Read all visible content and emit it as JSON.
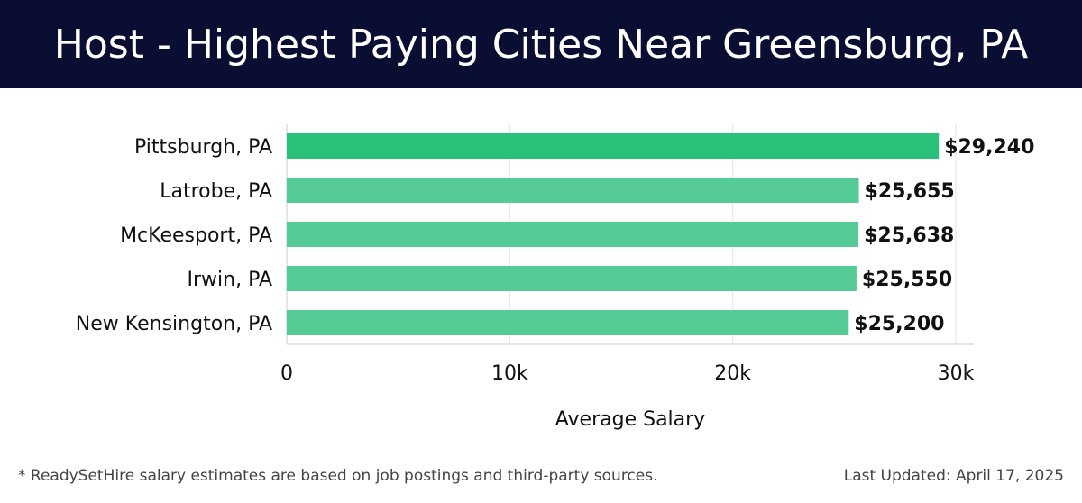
{
  "header": {
    "title": "Host - Highest Paying Cities Near Greensburg, PA"
  },
  "chart_data": {
    "type": "bar",
    "orientation": "horizontal",
    "categories": [
      "Pittsburgh, PA",
      "Latrobe, PA",
      "McKeesport, PA",
      "Irwin, PA",
      "New Kensington, PA"
    ],
    "values": [
      29240,
      25655,
      25638,
      25550,
      25200
    ],
    "value_labels": [
      "$29,240",
      "$25,655",
      "$25,638",
      "$25,550",
      "$25,200"
    ],
    "xlabel": "Average Salary",
    "ylabel": "",
    "xlim": [
      0,
      30000
    ],
    "x_ticks": [
      0,
      10000,
      20000,
      30000
    ],
    "x_tick_labels": [
      "0",
      "10k",
      "20k",
      "30k"
    ],
    "grid": true,
    "colors": {
      "highlight": "#29c07a",
      "default": "#55cc95",
      "grid": "#e3e3e3",
      "axis": "#cccccc"
    }
  },
  "footer": {
    "note": "* ReadySetHire salary estimates are based on job postings and third-party sources.",
    "updated": "Last Updated: April 17, 2025"
  }
}
